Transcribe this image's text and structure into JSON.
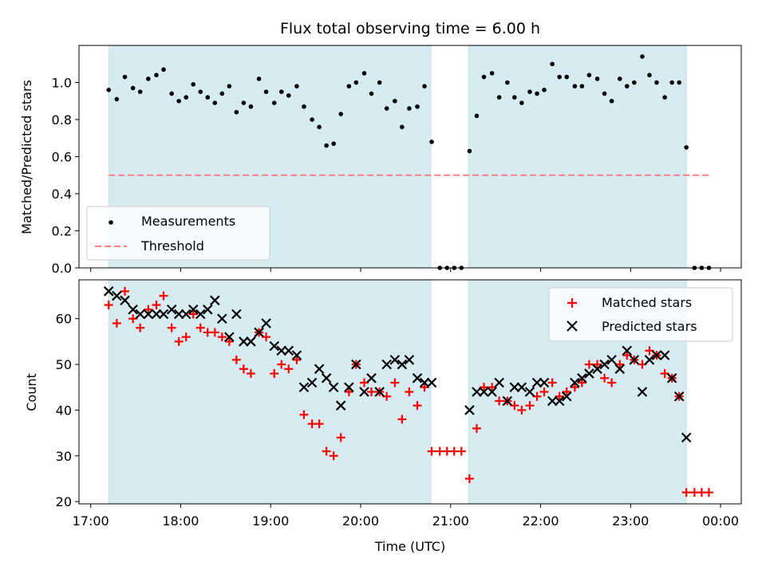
{
  "chart_data": {
    "type": "scatter",
    "title": "Flux total observing time = 6.00 h",
    "xlabel": "Time (UTC)",
    "x_range_hours": [
      16.87,
      24.23
    ],
    "x_ticks": [
      {
        "t": 17,
        "label": "17:00"
      },
      {
        "t": 18,
        "label": "18:00"
      },
      {
        "t": 19,
        "label": "19:00"
      },
      {
        "t": 20,
        "label": "20:00"
      },
      {
        "t": 21,
        "label": "21:00"
      },
      {
        "t": 22,
        "label": "22:00"
      },
      {
        "t": 23,
        "label": "23:00"
      },
      {
        "t": 24,
        "label": "00:00"
      }
    ],
    "observing_windows_hours": [
      [
        17.2,
        20.78
      ],
      [
        21.2,
        23.62
      ]
    ],
    "top_panel": {
      "ylabel": "Matched/Predicted stars",
      "ylim": [
        0,
        1.2
      ],
      "yticks": [
        0.0,
        0.2,
        0.4,
        0.6,
        0.8,
        1.0
      ],
      "threshold": {
        "value": 0.5,
        "x_range_hours": [
          17.2,
          23.87
        ],
        "color": "#ff7f7f"
      },
      "legend": {
        "measurements_label": "Measurements",
        "threshold_label": "Threshold",
        "placement": "lower-left"
      },
      "series": [
        {
          "name": "Measurements",
          "color": "#000000",
          "points": [
            [
              17.2,
              0.96
            ],
            [
              17.29,
              0.91
            ],
            [
              17.38,
              1.03
            ],
            [
              17.47,
              0.97
            ],
            [
              17.55,
              0.95
            ],
            [
              17.64,
              1.02
            ],
            [
              17.73,
              1.04
            ],
            [
              17.81,
              1.07
            ],
            [
              17.9,
              0.94
            ],
            [
              17.98,
              0.9
            ],
            [
              18.06,
              0.92
            ],
            [
              18.14,
              0.99
            ],
            [
              18.22,
              0.95
            ],
            [
              18.3,
              0.92
            ],
            [
              18.38,
              0.89
            ],
            [
              18.46,
              0.94
            ],
            [
              18.54,
              0.98
            ],
            [
              18.62,
              0.84
            ],
            [
              18.7,
              0.89
            ],
            [
              18.78,
              0.87
            ],
            [
              18.87,
              1.02
            ],
            [
              18.95,
              0.95
            ],
            [
              19.04,
              0.89
            ],
            [
              19.12,
              0.95
            ],
            [
              19.2,
              0.93
            ],
            [
              19.29,
              0.98
            ],
            [
              19.37,
              0.87
            ],
            [
              19.46,
              0.8
            ],
            [
              19.54,
              0.76
            ],
            [
              19.62,
              0.66
            ],
            [
              19.7,
              0.67
            ],
            [
              19.78,
              0.83
            ],
            [
              19.87,
              0.98
            ],
            [
              19.95,
              1.0
            ],
            [
              20.04,
              1.05
            ],
            [
              20.12,
              0.94
            ],
            [
              20.21,
              1.0
            ],
            [
              20.29,
              0.86
            ],
            [
              20.38,
              0.9
            ],
            [
              20.46,
              0.76
            ],
            [
              20.54,
              0.86
            ],
            [
              20.63,
              0.87
            ],
            [
              20.71,
              0.98
            ],
            [
              20.79,
              0.68
            ],
            [
              20.88,
              0.0
            ],
            [
              20.96,
              0.0
            ],
            [
              21.04,
              0.0
            ],
            [
              21.12,
              0.0
            ],
            [
              21.21,
              0.63
            ],
            [
              21.29,
              0.82
            ],
            [
              21.37,
              1.03
            ],
            [
              21.46,
              1.05
            ],
            [
              21.54,
              0.92
            ],
            [
              21.63,
              1.0
            ],
            [
              21.71,
              0.92
            ],
            [
              21.79,
              0.89
            ],
            [
              21.88,
              0.95
            ],
            [
              21.96,
              0.94
            ],
            [
              22.04,
              0.96
            ],
            [
              22.13,
              1.1
            ],
            [
              22.21,
              1.03
            ],
            [
              22.29,
              1.03
            ],
            [
              22.38,
              0.98
            ],
            [
              22.46,
              0.98
            ],
            [
              22.54,
              1.04
            ],
            [
              22.63,
              1.02
            ],
            [
              22.71,
              0.94
            ],
            [
              22.79,
              0.9
            ],
            [
              22.88,
              1.02
            ],
            [
              22.96,
              0.98
            ],
            [
              23.04,
              1.0
            ],
            [
              23.13,
              1.14
            ],
            [
              23.21,
              1.04
            ],
            [
              23.29,
              1.0
            ],
            [
              23.38,
              0.92
            ],
            [
              23.46,
              1.0
            ],
            [
              23.54,
              1.0
            ],
            [
              23.62,
              0.65
            ],
            [
              23.71,
              0.0
            ],
            [
              23.79,
              0.0
            ],
            [
              23.87,
              0.0
            ]
          ]
        }
      ]
    },
    "bottom_panel": {
      "ylabel": "Count",
      "ylim": [
        19.5,
        68.5
      ],
      "yticks": [
        20,
        30,
        40,
        50,
        60
      ],
      "legend": {
        "matched_label": "Matched stars",
        "predicted_label": "Predicted stars",
        "placement": "upper-right"
      },
      "series": [
        {
          "name": "Matched stars",
          "marker": "+",
          "color": "#ff0000",
          "points": [
            [
              17.2,
              63
            ],
            [
              17.29,
              59
            ],
            [
              17.38,
              66
            ],
            [
              17.47,
              60
            ],
            [
              17.55,
              58
            ],
            [
              17.64,
              62
            ],
            [
              17.73,
              63
            ],
            [
              17.81,
              65
            ],
            [
              17.9,
              58
            ],
            [
              17.98,
              55
            ],
            [
              18.06,
              56
            ],
            [
              18.14,
              61
            ],
            [
              18.22,
              58
            ],
            [
              18.3,
              57
            ],
            [
              18.38,
              57
            ],
            [
              18.46,
              56
            ],
            [
              18.54,
              55
            ],
            [
              18.62,
              51
            ],
            [
              18.7,
              49
            ],
            [
              18.78,
              48
            ],
            [
              18.87,
              57
            ],
            [
              18.95,
              56
            ],
            [
              19.04,
              48
            ],
            [
              19.12,
              50
            ],
            [
              19.2,
              49
            ],
            [
              19.29,
              51
            ],
            [
              19.37,
              39
            ],
            [
              19.46,
              37
            ],
            [
              19.54,
              37
            ],
            [
              19.62,
              31
            ],
            [
              19.7,
              30
            ],
            [
              19.78,
              34
            ],
            [
              19.87,
              44
            ],
            [
              19.95,
              50
            ],
            [
              20.04,
              46
            ],
            [
              20.12,
              44
            ],
            [
              20.21,
              44
            ],
            [
              20.29,
              43
            ],
            [
              20.38,
              46
            ],
            [
              20.46,
              38
            ],
            [
              20.54,
              44
            ],
            [
              20.63,
              41
            ],
            [
              20.71,
              45
            ],
            [
              20.79,
              31
            ],
            [
              20.88,
              31
            ],
            [
              20.96,
              31
            ],
            [
              21.04,
              31
            ],
            [
              21.12,
              31
            ],
            [
              21.21,
              25
            ],
            [
              21.29,
              36
            ],
            [
              21.37,
              45
            ],
            [
              21.46,
              45
            ],
            [
              21.54,
              42
            ],
            [
              21.63,
              42
            ],
            [
              21.71,
              41
            ],
            [
              21.79,
              40
            ],
            [
              21.88,
              41
            ],
            [
              21.96,
              43
            ],
            [
              22.04,
              44
            ],
            [
              22.13,
              46
            ],
            [
              22.21,
              43
            ],
            [
              22.29,
              44
            ],
            [
              22.38,
              45
            ],
            [
              22.46,
              46
            ],
            [
              22.54,
              50
            ],
            [
              22.63,
              50
            ],
            [
              22.71,
              47
            ],
            [
              22.79,
              46
            ],
            [
              22.88,
              50
            ],
            [
              22.96,
              52
            ],
            [
              23.04,
              51
            ],
            [
              23.13,
              50
            ],
            [
              23.21,
              53
            ],
            [
              23.29,
              52
            ],
            [
              23.38,
              48
            ],
            [
              23.46,
              47
            ],
            [
              23.54,
              43
            ],
            [
              23.62,
              22
            ],
            [
              23.71,
              22
            ],
            [
              23.79,
              22
            ],
            [
              23.87,
              22
            ]
          ]
        },
        {
          "name": "Predicted stars",
          "marker": "x",
          "color": "#000000",
          "points": [
            [
              17.2,
              66
            ],
            [
              17.29,
              65
            ],
            [
              17.38,
              64
            ],
            [
              17.47,
              62
            ],
            [
              17.55,
              61
            ],
            [
              17.64,
              61
            ],
            [
              17.73,
              61
            ],
            [
              17.81,
              61
            ],
            [
              17.9,
              62
            ],
            [
              17.98,
              61
            ],
            [
              18.06,
              61
            ],
            [
              18.14,
              62
            ],
            [
              18.22,
              61
            ],
            [
              18.3,
              62
            ],
            [
              18.38,
              64
            ],
            [
              18.46,
              60
            ],
            [
              18.54,
              56
            ],
            [
              18.62,
              61
            ],
            [
              18.7,
              55
            ],
            [
              18.78,
              55
            ],
            [
              18.87,
              57
            ],
            [
              18.95,
              59
            ],
            [
              19.04,
              54
            ],
            [
              19.12,
              53
            ],
            [
              19.2,
              53
            ],
            [
              19.29,
              52
            ],
            [
              19.37,
              45
            ],
            [
              19.46,
              46
            ],
            [
              19.54,
              49
            ],
            [
              19.62,
              47
            ],
            [
              19.7,
              45
            ],
            [
              19.78,
              41
            ],
            [
              19.87,
              45
            ],
            [
              19.95,
              50
            ],
            [
              20.04,
              44
            ],
            [
              20.12,
              47
            ],
            [
              20.21,
              44
            ],
            [
              20.29,
              50
            ],
            [
              20.38,
              51
            ],
            [
              20.46,
              50
            ],
            [
              20.54,
              51
            ],
            [
              20.63,
              47
            ],
            [
              20.71,
              46
            ],
            [
              20.79,
              46
            ],
            [
              21.21,
              40
            ],
            [
              21.29,
              44
            ],
            [
              21.37,
              44
            ],
            [
              21.46,
              44
            ],
            [
              21.54,
              46
            ],
            [
              21.63,
              42
            ],
            [
              21.71,
              45
            ],
            [
              21.79,
              45
            ],
            [
              21.88,
              44
            ],
            [
              21.96,
              46
            ],
            [
              22.04,
              46
            ],
            [
              22.13,
              42
            ],
            [
              22.21,
              42
            ],
            [
              22.29,
              43
            ],
            [
              22.38,
              46
            ],
            [
              22.46,
              47
            ],
            [
              22.54,
              48
            ],
            [
              22.63,
              49
            ],
            [
              22.71,
              50
            ],
            [
              22.79,
              51
            ],
            [
              22.88,
              49
            ],
            [
              22.96,
              53
            ],
            [
              23.04,
              51
            ],
            [
              23.13,
              44
            ],
            [
              23.21,
              51
            ],
            [
              23.29,
              52
            ],
            [
              23.38,
              52
            ],
            [
              23.46,
              47
            ],
            [
              23.54,
              43
            ],
            [
              23.62,
              34
            ]
          ]
        }
      ]
    }
  }
}
